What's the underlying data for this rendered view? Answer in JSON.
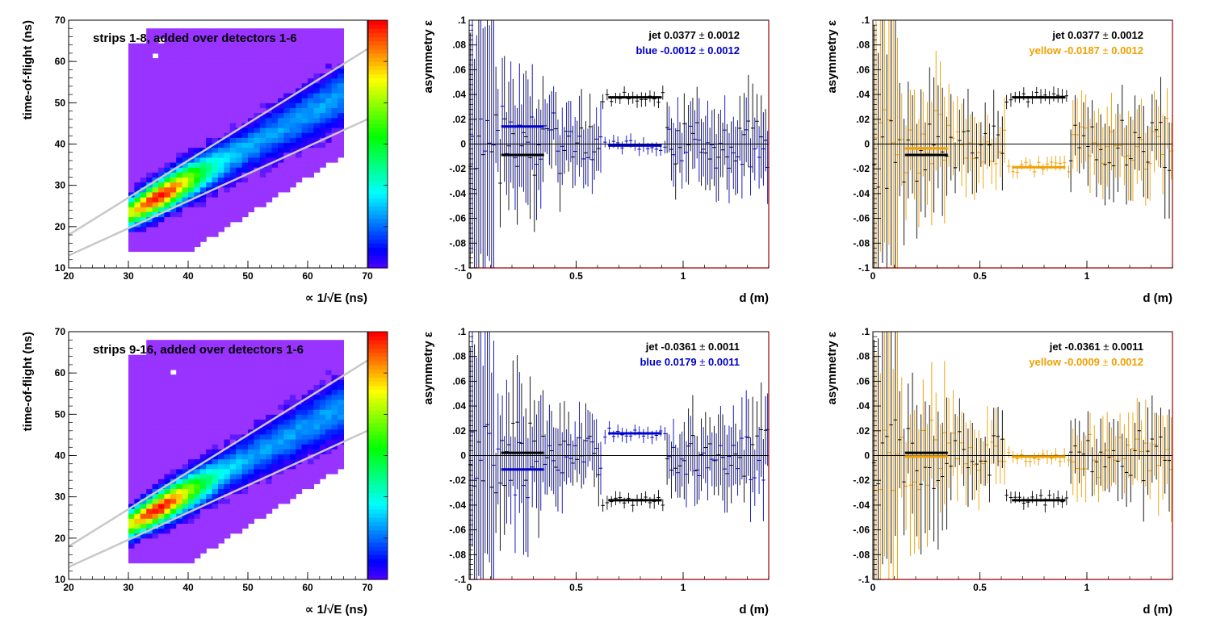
{
  "chart_data": [
    {
      "type": "heatmap",
      "panel": "hist-top",
      "annotation": "strips 1-8, added over detectors 1-6",
      "xlabel": "∝ 1/√E (ns)",
      "ylabel": "time-of-flight (ns)",
      "xlim": [
        20,
        70
      ],
      "ylim": [
        10,
        70
      ],
      "xticks": [
        20,
        30,
        40,
        50,
        60,
        70
      ],
      "yticks": [
        10,
        20,
        30,
        40,
        50,
        60,
        70
      ],
      "band_lines": [
        {
          "x": [
            20,
            70
          ],
          "y": [
            18,
            63
          ]
        },
        {
          "x": [
            20,
            70
          ],
          "y": [
            13,
            46
          ]
        }
      ],
      "band_center": {
        "x": [
          31,
          66
        ],
        "y": [
          24,
          52
        ]
      },
      "hotspot": [
        35,
        26
      ],
      "colorbar": "rainbow"
    },
    {
      "type": "scatter",
      "panel": "blue-top",
      "xlabel": "d (m)",
      "ylabel": "asymmetry ε",
      "xlim": [
        0,
        1.4
      ],
      "ylim": [
        -0.1,
        0.1
      ],
      "xticks": [
        0,
        0.5,
        1
      ],
      "yticks": [
        -0.1,
        -0.08,
        -0.06,
        -0.04,
        -0.02,
        0,
        0.02,
        0.04,
        0.06,
        0.08,
        0.1
      ],
      "stats": [
        {
          "label": "jet  0.0377",
          "pm": "±",
          "err": "0.0012",
          "color": "#000000"
        },
        {
          "label": "blue -0.0012",
          "pm": "±",
          "err": "0.0012",
          "color": "#0000cc"
        }
      ],
      "series": [
        {
          "color": "#000000",
          "fit_segments": [
            {
              "x": [
                0.15,
                0.35
              ],
              "y": -0.0088
            },
            {
              "x": [
                0.65,
                0.9
              ],
              "y": 0.0377
            }
          ]
        },
        {
          "color": "#0000cc",
          "fit_segments": [
            {
              "x": [
                0.15,
                0.35
              ],
              "y": 0.0142
            },
            {
              "x": [
                0.65,
                0.9
              ],
              "y": -0.0012
            }
          ]
        }
      ]
    },
    {
      "type": "scatter",
      "panel": "yellow-top",
      "xlabel": "d (m)",
      "ylabel": "asymmetry ε",
      "xlim": [
        0,
        1.4
      ],
      "ylim": [
        -0.1,
        0.1
      ],
      "xticks": [
        0,
        0.5,
        1
      ],
      "yticks": [
        -0.1,
        -0.08,
        -0.06,
        -0.04,
        -0.02,
        0,
        0.02,
        0.04,
        0.06,
        0.08,
        0.1
      ],
      "stats": [
        {
          "label": "jet  0.0377",
          "pm": "±",
          "err": "0.0012",
          "color": "#000000"
        },
        {
          "label": "yellow -0.0187",
          "pm": "±",
          "err": "0.0012",
          "color": "#f0a000"
        }
      ],
      "series": [
        {
          "color": "#000000",
          "fit_segments": [
            {
              "x": [
                0.15,
                0.35
              ],
              "y": -0.0088
            },
            {
              "x": [
                0.65,
                0.9
              ],
              "y": 0.0377
            }
          ]
        },
        {
          "color": "#f0a000",
          "fit_segments": [
            {
              "x": [
                0.15,
                0.35
              ],
              "y": -0.0035
            },
            {
              "x": [
                0.65,
                0.9
              ],
              "y": -0.0187
            }
          ]
        }
      ]
    },
    {
      "type": "heatmap",
      "panel": "hist-bottom",
      "annotation": "strips 9-16, added over detectors 1-6",
      "xlabel": "∝ 1/√E (ns)",
      "ylabel": "time-of-flight (ns)",
      "xlim": [
        20,
        70
      ],
      "ylim": [
        10,
        70
      ],
      "xticks": [
        20,
        30,
        40,
        50,
        60,
        70
      ],
      "yticks": [
        10,
        20,
        30,
        40,
        50,
        60,
        70
      ],
      "band_lines": [
        {
          "x": [
            20,
            70
          ],
          "y": [
            18,
            63
          ]
        },
        {
          "x": [
            20,
            70
          ],
          "y": [
            13,
            46
          ]
        }
      ],
      "band_center": {
        "x": [
          31,
          66
        ],
        "y": [
          24,
          52
        ]
      },
      "hotspot": [
        35,
        26
      ],
      "colorbar": "rainbow"
    },
    {
      "type": "scatter",
      "panel": "blue-bottom",
      "xlabel": "d (m)",
      "ylabel": "asymmetry ε",
      "xlim": [
        0,
        1.4
      ],
      "ylim": [
        -0.1,
        0.1
      ],
      "xticks": [
        0,
        0.5,
        1
      ],
      "yticks": [
        -0.1,
        -0.08,
        -0.06,
        -0.04,
        -0.02,
        0,
        0.02,
        0.04,
        0.06,
        0.08,
        0.1
      ],
      "stats": [
        {
          "label": "jet -0.0361",
          "pm": "±",
          "err": "0.0011",
          "color": "#000000"
        },
        {
          "label": "blue  0.0179",
          "pm": "±",
          "err": "0.0011",
          "color": "#0000cc"
        }
      ],
      "series": [
        {
          "color": "#000000",
          "fit_segments": [
            {
              "x": [
                0.15,
                0.35
              ],
              "y": 0.0022
            },
            {
              "x": [
                0.65,
                0.9
              ],
              "y": -0.0361
            }
          ]
        },
        {
          "color": "#0000cc",
          "fit_segments": [
            {
              "x": [
                0.15,
                0.35
              ],
              "y": -0.0112
            },
            {
              "x": [
                0.65,
                0.9
              ],
              "y": 0.0179
            }
          ]
        }
      ]
    },
    {
      "type": "scatter",
      "panel": "yellow-bottom",
      "xlabel": "d (m)",
      "ylabel": "asymmetry ε",
      "xlim": [
        0,
        1.4
      ],
      "ylim": [
        -0.1,
        0.1
      ],
      "xticks": [
        0,
        0.5,
        1
      ],
      "yticks": [
        -0.1,
        -0.08,
        -0.06,
        -0.04,
        -0.02,
        0,
        0.02,
        0.04,
        0.06,
        0.08,
        0.1
      ],
      "stats": [
        {
          "label": "jet -0.0361",
          "pm": "±",
          "err": "0.0011",
          "color": "#000000"
        },
        {
          "label": "yellow -0.0009",
          "pm": "±",
          "err": "0.0012",
          "color": "#f0a000"
        }
      ],
      "series": [
        {
          "color": "#000000",
          "fit_segments": [
            {
              "x": [
                0.15,
                0.35
              ],
              "y": 0.0022
            },
            {
              "x": [
                0.65,
                0.9
              ],
              "y": -0.0361
            }
          ]
        },
        {
          "color": "#f0a000",
          "fit_segments": [
            {
              "x": [
                0.15,
                0.35
              ],
              "y": -0.0008
            },
            {
              "x": [
                0.65,
                0.9
              ],
              "y": -0.0009
            }
          ]
        }
      ]
    }
  ]
}
